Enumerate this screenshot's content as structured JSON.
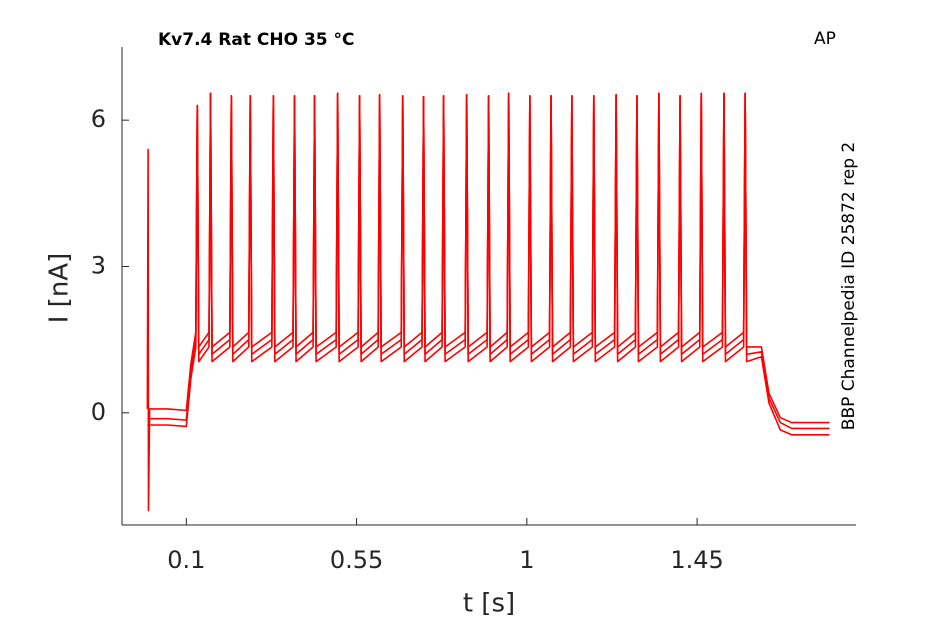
{
  "chart_data": {
    "type": "line",
    "title": "Kv7.4  Rat  CHO  35 °C",
    "corner_label": "AP",
    "side_label": "BBP Channelpedia ID 25872 rep 2",
    "xlabel": "t [s]",
    "ylabel": "I [nA]",
    "xlim": [
      -0.07,
      1.87
    ],
    "ylim": [
      -2.3,
      7.5
    ],
    "xticks": [
      0.1,
      0.55,
      1,
      1.45
    ],
    "yticks": [
      0,
      3,
      6
    ],
    "grid": false,
    "x": [
      -0.003,
      -0.001,
      0,
      0.003,
      0.05,
      0.1,
      0.112,
      0.125,
      0.129,
      0.133,
      0.16,
      0.164,
      0.168,
      0.215,
      0.219,
      0.223,
      0.265,
      0.269,
      0.273,
      0.326,
      0.33,
      0.334,
      0.382,
      0.386,
      0.39,
      0.435,
      0.439,
      0.443,
      0.496,
      0.5,
      0.504,
      0.554,
      0.558,
      0.562,
      0.607,
      0.611,
      0.615,
      0.668,
      0.672,
      0.676,
      0.723,
      0.727,
      0.731,
      0.776,
      0.78,
      0.784,
      0.837,
      0.841,
      0.845,
      0.895,
      0.899,
      0.903,
      0.948,
      0.952,
      0.956,
      1.004,
      1.008,
      1.012,
      1.06,
      1.064,
      1.068,
      1.115,
      1.119,
      1.123,
      1.173,
      1.177,
      1.181,
      1.232,
      1.236,
      1.24,
      1.287,
      1.291,
      1.295,
      1.345,
      1.349,
      1.353,
      1.401,
      1.405,
      1.409,
      1.457,
      1.461,
      1.465,
      1.517,
      1.521,
      1.525,
      1.573,
      1.577,
      1.581,
      1.62,
      1.64,
      1.67,
      1.7,
      1.8
    ],
    "series": [
      {
        "color": "#ff0000",
        "values": [
          0.08,
          5.4,
          -2.0,
          0.08,
          0.08,
          0.05,
          1.0,
          1.65,
          6.3,
          1.35,
          1.65,
          6.55,
          1.35,
          1.65,
          6.5,
          1.35,
          1.65,
          6.5,
          1.35,
          1.65,
          6.5,
          1.35,
          1.65,
          6.5,
          1.35,
          1.65,
          6.5,
          1.35,
          1.65,
          6.55,
          1.35,
          1.65,
          6.5,
          1.35,
          1.65,
          6.52,
          1.35,
          1.65,
          6.5,
          1.35,
          1.65,
          6.48,
          1.35,
          1.65,
          6.5,
          1.35,
          1.65,
          6.52,
          1.35,
          1.65,
          6.5,
          1.35,
          1.65,
          6.55,
          1.35,
          1.65,
          6.5,
          1.35,
          1.65,
          6.5,
          1.35,
          1.65,
          6.5,
          1.35,
          1.65,
          6.5,
          1.35,
          1.65,
          6.52,
          1.35,
          1.65,
          6.5,
          1.35,
          1.65,
          6.55,
          1.35,
          1.65,
          6.5,
          1.35,
          1.65,
          6.55,
          1.35,
          1.65,
          6.55,
          1.35,
          1.65,
          6.55,
          1.35,
          1.35,
          0.4,
          -0.1,
          -0.2,
          -0.2
        ]
      },
      {
        "color": "#ff0000",
        "values": [
          -0.12,
          -0.12,
          -0.12,
          -0.12,
          -0.12,
          -0.15,
          0.85,
          1.5,
          6.3,
          1.2,
          1.5,
          6.55,
          1.2,
          1.5,
          6.5,
          1.2,
          1.5,
          6.5,
          1.2,
          1.5,
          6.5,
          1.2,
          1.5,
          6.5,
          1.2,
          1.5,
          6.5,
          1.2,
          1.5,
          6.55,
          1.2,
          1.5,
          6.5,
          1.2,
          1.5,
          6.52,
          1.2,
          1.5,
          6.5,
          1.2,
          1.5,
          6.48,
          1.2,
          1.5,
          6.5,
          1.2,
          1.5,
          6.52,
          1.2,
          1.5,
          6.5,
          1.2,
          1.5,
          6.55,
          1.2,
          1.5,
          6.5,
          1.2,
          1.5,
          6.5,
          1.2,
          1.5,
          6.5,
          1.2,
          1.5,
          6.5,
          1.2,
          1.5,
          6.52,
          1.2,
          1.5,
          6.5,
          1.2,
          1.5,
          6.55,
          1.2,
          1.5,
          6.5,
          1.2,
          1.5,
          6.55,
          1.2,
          1.5,
          6.55,
          1.2,
          1.5,
          6.55,
          1.2,
          1.25,
          0.3,
          -0.2,
          -0.32,
          -0.32
        ]
      },
      {
        "color": "#ff0000",
        "values": [
          -0.25,
          -0.25,
          -0.25,
          -0.25,
          -0.25,
          -0.28,
          0.7,
          1.35,
          6.3,
          1.05,
          1.35,
          6.55,
          1.05,
          1.35,
          6.5,
          1.05,
          1.35,
          6.5,
          1.05,
          1.35,
          6.5,
          1.05,
          1.35,
          6.5,
          1.05,
          1.35,
          6.5,
          1.05,
          1.35,
          6.55,
          1.05,
          1.35,
          6.5,
          1.05,
          1.35,
          6.52,
          1.05,
          1.35,
          6.5,
          1.05,
          1.35,
          6.48,
          1.05,
          1.35,
          6.5,
          1.05,
          1.35,
          6.52,
          1.05,
          1.35,
          6.5,
          1.05,
          1.35,
          6.55,
          1.05,
          1.35,
          6.5,
          1.05,
          1.35,
          6.5,
          1.05,
          1.35,
          6.5,
          1.05,
          1.35,
          6.5,
          1.05,
          1.35,
          6.52,
          1.05,
          1.35,
          6.5,
          1.05,
          1.35,
          6.55,
          1.05,
          1.35,
          6.5,
          1.05,
          1.35,
          6.55,
          1.05,
          1.35,
          6.55,
          1.05,
          1.35,
          6.55,
          1.05,
          1.15,
          0.2,
          -0.35,
          -0.45,
          -0.45
        ]
      }
    ]
  }
}
